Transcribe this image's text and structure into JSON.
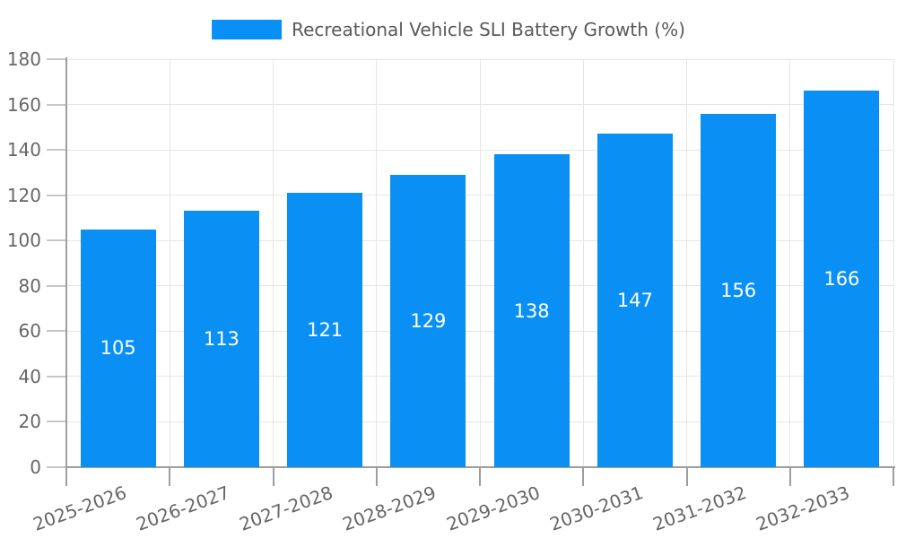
{
  "legend": {
    "series_label": "Recreational Vehicle SLI Battery Growth (%)"
  },
  "chart_data": {
    "type": "bar",
    "title": "Recreational Vehicle SLI Battery Growth (%)",
    "categories": [
      "2025-2026",
      "2026-2027",
      "2027-2028",
      "2028-2029",
      "2029-2030",
      "2030-2031",
      "2031-2032",
      "2032-2033"
    ],
    "values": [
      105,
      113,
      121,
      129,
      138,
      147,
      156,
      166
    ],
    "series": [
      {
        "name": "Recreational Vehicle SLI Battery Growth (%)",
        "values": [
          105,
          113,
          121,
          129,
          138,
          147,
          156,
          166
        ]
      }
    ],
    "value_labels": [
      105,
      113,
      121,
      129,
      138,
      147,
      156,
      166
    ],
    "xlabel": "",
    "ylabel": "",
    "ylim": [
      0,
      180
    ],
    "ytick_step": 20,
    "ytick_labels": [
      "0",
      "20",
      "40",
      "60",
      "80",
      "100",
      "120",
      "140",
      "160",
      "180"
    ],
    "grid": true,
    "legend_position": "top",
    "colors": {
      "bar": "#0a90f5",
      "grid_line": "#e6e6e6",
      "axis_line": "#9e9e9e",
      "ytick_mark": "#c6c6c6",
      "xtick_mark": "#9e9e9e",
      "tick_label": "#666666",
      "legend_text": "#595959",
      "value_label": "#ffffff"
    }
  }
}
